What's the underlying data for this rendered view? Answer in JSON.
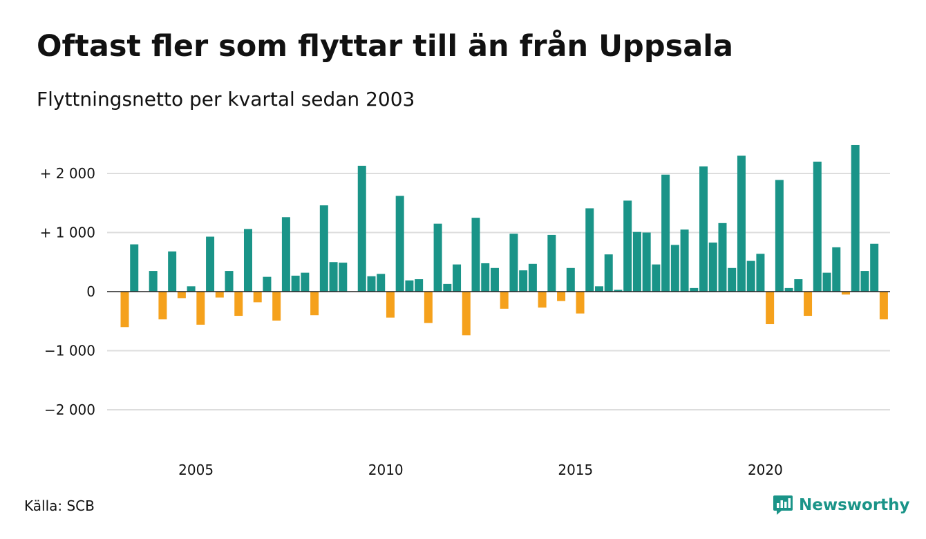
{
  "title": "Oftast fler som flyttar till än från Uppsala",
  "subtitle": "Flyttningsnetto per kvartal sedan 2003",
  "source": "Källa: SCB",
  "brand": {
    "name": "Newsworthy",
    "icon": "newsworthy-logo-icon"
  },
  "colors": {
    "positive": "#1a9488",
    "negative": "#f5a11c",
    "grid": "#dddddd",
    "zero": "#222222"
  },
  "chart_data": {
    "type": "bar",
    "x_unit": "quarter",
    "start": "2003 Q2",
    "end": "2023 Q3",
    "ylim": [
      -2400,
      2600
    ],
    "yticks": [
      {
        "value": 2000,
        "label": "+ 2 000"
      },
      {
        "value": 1000,
        "label": "+ 1 000"
      },
      {
        "value": 0,
        "label": "0"
      },
      {
        "value": -1000,
        "label": "−1 000"
      },
      {
        "value": -2000,
        "label": "−2 000"
      }
    ],
    "xticks": [
      {
        "year": 2005,
        "label": "2005"
      },
      {
        "year": 2010,
        "label": "2010"
      },
      {
        "year": 2015,
        "label": "2015"
      },
      {
        "year": 2020,
        "label": "2020"
      }
    ],
    "grid": true,
    "values": [
      -600,
      800,
      0,
      350,
      -470,
      680,
      -110,
      90,
      -560,
      930,
      -100,
      350,
      -410,
      1060,
      -180,
      250,
      -490,
      1260,
      270,
      320,
      -400,
      1460,
      500,
      490,
      0,
      2130,
      260,
      300,
      -440,
      1620,
      190,
      210,
      -530,
      1150,
      130,
      460,
      -740,
      1250,
      480,
      400,
      -290,
      980,
      360,
      470,
      -270,
      960,
      -160,
      400,
      -370,
      1410,
      90,
      630,
      30,
      1540,
      1010,
      1000,
      460,
      1980,
      790,
      1050,
      60,
      2120,
      830,
      1160,
      400,
      2300,
      520,
      640,
      -550,
      1890,
      60,
      210,
      -410,
      2200,
      320,
      750,
      -50,
      2480,
      350,
      810,
      -470
    ]
  }
}
